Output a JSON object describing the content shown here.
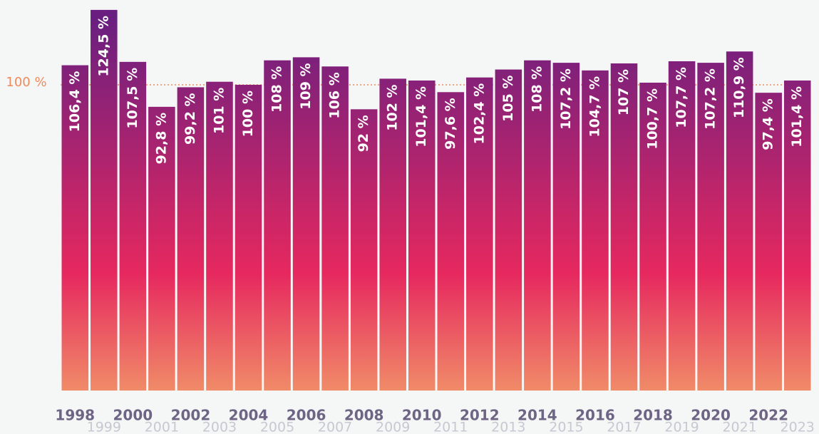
{
  "chart_data": {
    "type": "bar",
    "categories": [
      "1998",
      "1999",
      "2000",
      "2001",
      "2002",
      "2003",
      "2004",
      "2005",
      "2006",
      "2007",
      "2008",
      "2009",
      "2010",
      "2011",
      "2012",
      "2013",
      "2014",
      "2015",
      "2016",
      "2017",
      "2018",
      "2019",
      "2020",
      "2021",
      "2022",
      "2023"
    ],
    "values": [
      106.4,
      124.5,
      107.5,
      92.8,
      99.2,
      101,
      100,
      108,
      109,
      106,
      92,
      102,
      101.4,
      97.6,
      102.4,
      105,
      108,
      107.2,
      104.7,
      107,
      100.7,
      107.7,
      107.2,
      110.9,
      97.4,
      101.4
    ],
    "value_labels": [
      "106,4 %",
      "124,5 %",
      "107,5 %",
      "92,8 %",
      "99,2 %",
      "101 %",
      "100 %",
      "108 %",
      "109 %",
      "106 %",
      "92 %",
      "102 %",
      "101,4 %",
      "97,6 %",
      "102,4 %",
      "105 %",
      "108 %",
      "107,2 %",
      "104,7 %",
      "107 %",
      "100,7 %",
      "107,7 %",
      "107,2 %",
      "110,9 %",
      "97,4 %",
      "101,4 %"
    ],
    "gradient": [
      "#6a1f80",
      "#e6285f",
      "#f08b68"
    ],
    "ylim": [
      0,
      127
    ],
    "yticks": [
      {
        "value": 100,
        "label": "100 %"
      }
    ],
    "grid": true,
    "grid_color": "#f08a5d"
  }
}
